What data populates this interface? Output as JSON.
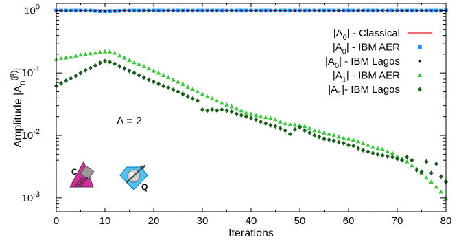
{
  "chart_data": {
    "type": "scatter",
    "title": "",
    "xlabel": "Iterations",
    "ylabel": {
      "base": "Amplitude |A",
      "sub": "n",
      "sup": "(β)",
      "end": "|"
    },
    "xlim": [
      0,
      80
    ],
    "ylim": [
      0.0006,
      1.3
    ],
    "yscale": "log",
    "grid": false,
    "legend_position": "top-right",
    "xticks": [
      "0",
      "10",
      "20",
      "30",
      "40",
      "50",
      "60",
      "70",
      "80"
    ],
    "xtick_values": [
      0,
      10,
      20,
      30,
      40,
      50,
      60,
      70,
      80
    ],
    "yticks": [
      {
        "value": 0.001,
        "base": "10",
        "exp": "-3"
      },
      {
        "value": 0.01,
        "base": "10",
        "exp": "-2"
      },
      {
        "value": 0.1,
        "base": "10",
        "exp": "-1"
      },
      {
        "value": 1,
        "base": "10",
        "exp": "0"
      }
    ],
    "annotation": "Λ = 2",
    "icons": [
      {
        "name": "classical-logo-icon",
        "letter": "C"
      },
      {
        "name": "quantum-logo-icon",
        "letter": "Q"
      }
    ],
    "series": [
      {
        "name_parts": [
          "|A",
          "0",
          "| - Classical"
        ],
        "style": "line",
        "color": "#e41a1c",
        "x": [
          0,
          80
        ],
        "y": [
          1.0,
          1.0
        ]
      },
      {
        "name_parts": [
          "|A",
          "0",
          "| - IBM AER"
        ],
        "style": "square",
        "color": "#1e90ff",
        "x_start": 0,
        "x_step": 1,
        "y": [
          1.0,
          1.0,
          1.0,
          1.0,
          1.0,
          1.0,
          1.0,
          1.0,
          0.99,
          0.98,
          0.975,
          0.98,
          0.985,
          0.99,
          1.0,
          1.0,
          1.0,
          1.0,
          1.0,
          1.0,
          1.0,
          1.0,
          1.0,
          1.0,
          1.0,
          1.0,
          1.0,
          1.0,
          1.0,
          1.0,
          1.0,
          1.0,
          1.0,
          1.0,
          1.0,
          1.0,
          1.0,
          1.0,
          1.0,
          1.0,
          1.0,
          1.0,
          1.0,
          1.0,
          1.0,
          1.0,
          1.0,
          1.0,
          1.0,
          1.0,
          1.0,
          1.0,
          1.0,
          1.0,
          1.0,
          1.0,
          1.0,
          1.0,
          1.0,
          1.0,
          1.0,
          1.0,
          1.0,
          1.0,
          1.0,
          1.0,
          1.0,
          1.0,
          1.0,
          1.0,
          1.0,
          1.0,
          1.0,
          1.0,
          1.0,
          1.0,
          1.0,
          1.0,
          1.0,
          1.0,
          1.0
        ]
      },
      {
        "name_parts": [
          "|A",
          "0",
          "| - IBM Lagos"
        ],
        "style": "dot",
        "color": "#0a1a3c",
        "x_start": 0,
        "x_step": 1,
        "y": [
          1.0,
          1.0,
          1.0,
          1.0,
          1.0,
          1.0,
          1.0,
          1.0,
          0.99,
          0.98,
          0.975,
          0.98,
          0.985,
          0.99,
          1.0,
          1.0,
          1.0,
          1.0,
          1.0,
          1.0,
          1.0,
          1.0,
          1.0,
          1.0,
          1.0,
          1.0,
          1.0,
          1.0,
          1.0,
          1.0,
          1.0,
          1.0,
          1.0,
          1.0,
          1.0,
          1.0,
          1.0,
          1.0,
          1.0,
          1.0,
          1.0,
          1.0,
          1.0,
          1.0,
          1.0,
          1.0,
          1.0,
          1.0,
          1.0,
          1.0,
          1.0,
          1.0,
          1.0,
          1.0,
          1.0,
          1.0,
          1.0,
          1.0,
          1.0,
          1.0,
          1.0,
          1.0,
          1.0,
          1.0,
          1.0,
          1.0,
          1.0,
          1.0,
          1.0,
          1.0,
          1.0,
          1.0,
          1.0,
          1.0,
          1.0,
          1.0,
          1.0,
          1.0,
          1.0,
          1.0,
          1.0
        ]
      },
      {
        "name_parts": [
          "|A",
          "1",
          "| - IBM AER"
        ],
        "style": "triangle",
        "color": "#3cc83c",
        "x_start": 0,
        "x_step": 1,
        "y": [
          0.165,
          0.17,
          0.175,
          0.18,
          0.188,
          0.195,
          0.2,
          0.205,
          0.21,
          0.215,
          0.22,
          0.22,
          0.21,
          0.19,
          0.175,
          0.16,
          0.148,
          0.138,
          0.128,
          0.118,
          0.108,
          0.1,
          0.092,
          0.085,
          0.078,
          0.072,
          0.066,
          0.06,
          0.055,
          0.05,
          0.046,
          0.042,
          0.039,
          0.036,
          0.033,
          0.031,
          0.029,
          0.027,
          0.025,
          0.023,
          0.022,
          0.021,
          0.02,
          0.0195,
          0.019,
          0.018,
          0.0165,
          0.0155,
          0.015,
          0.0147,
          0.0145,
          0.014,
          0.013,
          0.012,
          0.0115,
          0.011,
          0.0105,
          0.01,
          0.0095,
          0.009,
          0.0088,
          0.0085,
          0.008,
          0.0075,
          0.007,
          0.0065,
          0.0062,
          0.006,
          0.0055,
          0.0052,
          0.0046,
          0.0042,
          0.0038,
          0.0033,
          0.0029,
          0.0025,
          0.0021,
          0.0018,
          0.0015,
          0.00125,
          0.00098
        ]
      },
      {
        "name_parts": [
          "|A",
          "1",
          "|- IBM Lagos"
        ],
        "style": "diamond",
        "color": "#1a5c1a",
        "x_start": 0,
        "x_step": 1,
        "y": [
          0.062,
          0.068,
          0.075,
          0.082,
          0.09,
          0.1,
          0.11,
          0.12,
          0.132,
          0.145,
          0.155,
          0.15,
          0.14,
          0.128,
          0.118,
          0.108,
          0.1,
          0.092,
          0.085,
          0.078,
          0.072,
          0.067,
          0.062,
          0.058,
          0.054,
          0.05,
          0.046,
          0.042,
          0.039,
          0.036,
          0.026,
          0.025,
          0.026,
          0.025,
          0.026,
          0.025,
          0.024,
          0.022,
          0.021,
          0.02,
          0.019,
          0.018,
          0.0165,
          0.0155,
          0.0145,
          0.014,
          0.013,
          0.012,
          0.0105,
          0.0125,
          0.0135,
          0.012,
          0.011,
          0.01,
          0.0095,
          0.0088,
          0.0085,
          0.0082,
          0.0078,
          0.0075,
          0.007,
          0.0068,
          0.0062,
          0.0058,
          0.0055,
          0.0052,
          0.005,
          0.0048,
          0.0046,
          0.0045,
          0.0042,
          0.004,
          0.0045,
          0.004,
          0.0028,
          0.0026,
          0.0038,
          0.0025,
          0.0035,
          0.0022,
          0.0018
        ]
      }
    ]
  }
}
